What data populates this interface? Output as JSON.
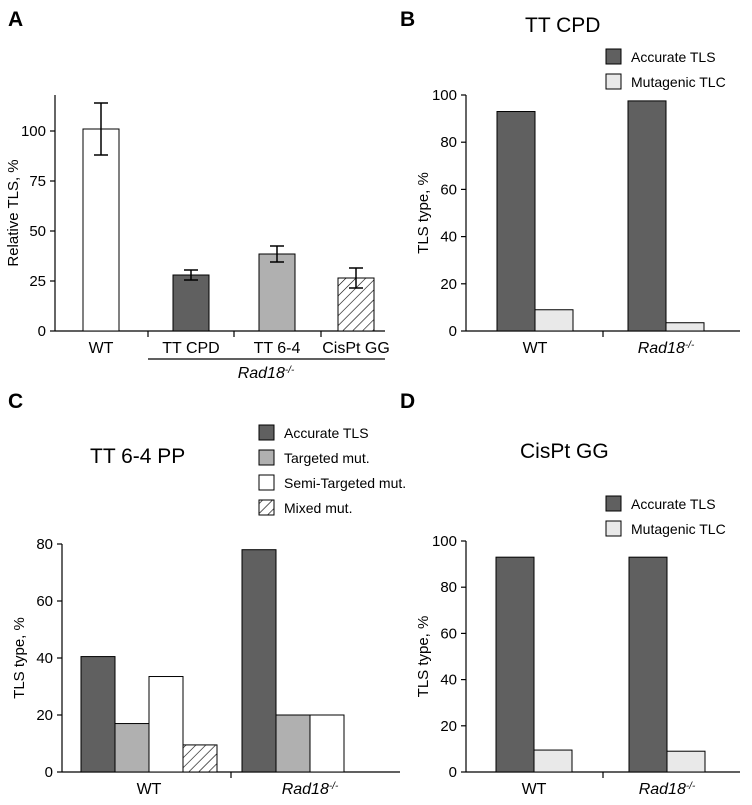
{
  "panels": {
    "A": {
      "label": "A"
    },
    "B": {
      "label": "B",
      "title": "TT CPD"
    },
    "C": {
      "label": "C",
      "title": "TT 6-4 PP"
    },
    "D": {
      "label": "D",
      "title": "CisPt GG"
    }
  },
  "colors": {
    "accurate": "#606060",
    "mutagenic": "#e9e9e9",
    "targeted": "#b0b0b0",
    "semi_targeted": "#ffffff",
    "tt_cpd": "#606060",
    "tt_64": "#b0b0b0",
    "wt": "#ffffff"
  },
  "chart_data": [
    {
      "panel": "A",
      "type": "bar",
      "categories": [
        "WT",
        "TT CPD",
        "TT 6-4",
        "CisPt GG"
      ],
      "values": [
        101,
        28,
        38.5,
        26.5
      ],
      "errors": [
        13,
        2.5,
        4,
        5
      ],
      "patterns": [
        "white",
        "dark",
        "gray",
        "hatched"
      ],
      "group_label": {
        "text": "Rad18",
        "sup": "-/-",
        "spans": [
          "TT CPD",
          "TT 6-4",
          "CisPt GG"
        ]
      },
      "xlabel": "",
      "ylabel": "Relative TLS, %",
      "ylim": [
        0,
        118
      ],
      "yticks": [
        0,
        25,
        50,
        75,
        100
      ],
      "grid": false
    },
    {
      "panel": "B",
      "type": "bar",
      "title": "TT CPD",
      "categories": [
        {
          "text": "WT",
          "sup": "",
          "italic": false
        },
        {
          "text": "Rad18",
          "sup": "-/-",
          "italic": true
        }
      ],
      "series": [
        {
          "name": "Accurate TLS",
          "values": [
            93,
            97.5
          ]
        },
        {
          "name": "Mutagenic TLC",
          "values": [
            9,
            3.5
          ]
        }
      ],
      "ylabel": "TLS type, %",
      "ylim": [
        0,
        100
      ],
      "yticks": [
        0,
        20,
        40,
        60,
        80,
        100
      ],
      "legend": "top-right",
      "grid": false
    },
    {
      "panel": "C",
      "type": "bar",
      "title": "TT 6-4 PP",
      "categories": [
        {
          "text": "WT",
          "sup": "",
          "italic": false
        },
        {
          "text": "Rad18",
          "sup": "-/-",
          "italic": true
        }
      ],
      "series": [
        {
          "name": "Accurate TLS",
          "values": [
            40.5,
            78
          ]
        },
        {
          "name": "Targeted mut.",
          "values": [
            17,
            20
          ]
        },
        {
          "name": "Semi-Targeted mut.",
          "values": [
            33.5,
            20
          ]
        },
        {
          "name": "Mixed mut.",
          "values": [
            9.5,
            null
          ]
        }
      ],
      "ylabel": "TLS type, %",
      "ylim": [
        0,
        80
      ],
      "yticks": [
        0,
        20,
        40,
        60,
        80
      ],
      "legend": "top-right",
      "grid": false
    },
    {
      "panel": "D",
      "type": "bar",
      "title": "CisPt GG",
      "categories": [
        {
          "text": "WT",
          "sup": "",
          "italic": false
        },
        {
          "text": "Rad18",
          "sup": "-/-",
          "italic": true
        }
      ],
      "series": [
        {
          "name": "Accurate TLS",
          "values": [
            93,
            93
          ]
        },
        {
          "name": "Mutagenic TLC",
          "values": [
            9.5,
            9
          ]
        }
      ],
      "ylabel": "TLS type, %",
      "ylim": [
        0,
        100
      ],
      "yticks": [
        0,
        20,
        40,
        60,
        80,
        100
      ],
      "legend": "top-right",
      "grid": false
    }
  ]
}
